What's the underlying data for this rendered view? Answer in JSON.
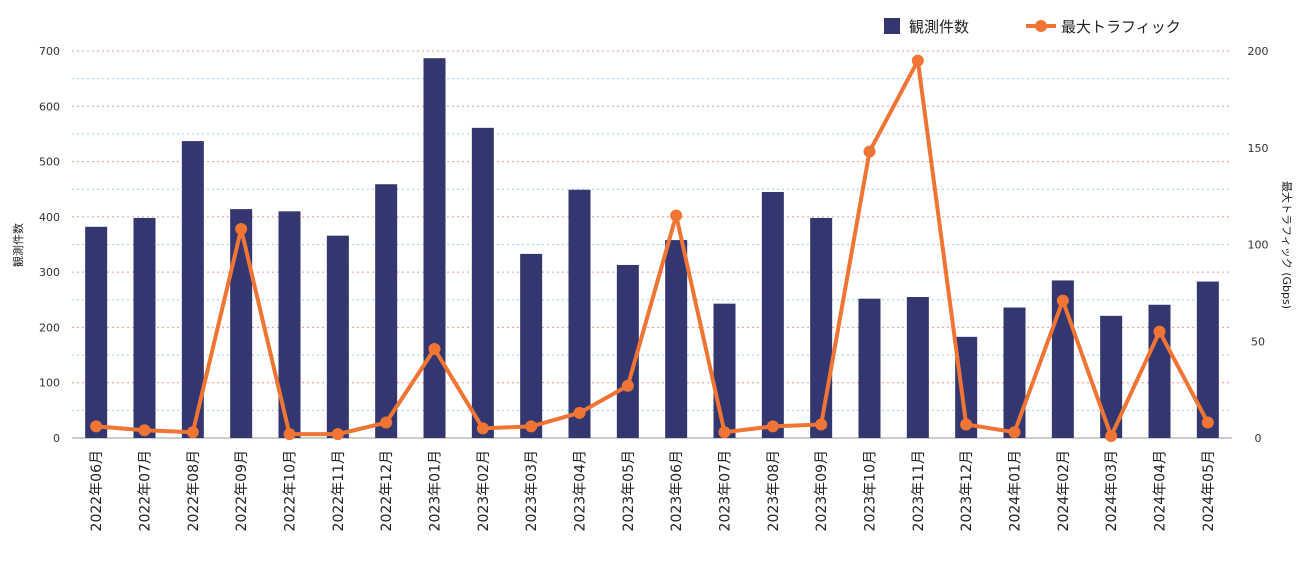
{
  "chart_data": {
    "type": "bar+line",
    "categories": [
      "2022年06月",
      "2022年07月",
      "2022年08月",
      "2022年09月",
      "2022年10月",
      "2022年11月",
      "2022年12月",
      "2023年01月",
      "2023年02月",
      "2023年03月",
      "2023年04月",
      "2023年05月",
      "2023年06月",
      "2023年07月",
      "2023年08月",
      "2023年09月",
      "2023年10月",
      "2023年11月",
      "2023年12月",
      "2024年01月",
      "2024年02月",
      "2024年03月",
      "2024年04月",
      "2024年05月"
    ],
    "series": [
      {
        "name": "観測件数",
        "type": "bar",
        "axis": "left",
        "color": "#33366f",
        "values": [
          382,
          398,
          537,
          414,
          410,
          366,
          459,
          687,
          561,
          333,
          449,
          313,
          358,
          243,
          445,
          398,
          252,
          255,
          183,
          236,
          285,
          221,
          241,
          283
        ]
      },
      {
        "name": "最大トラフィック",
        "type": "line",
        "axis": "right",
        "color": "#f07534",
        "values": [
          6,
          4,
          3,
          108,
          2,
          2,
          8,
          46,
          5,
          6,
          13,
          27,
          115,
          3,
          6,
          7,
          148,
          195,
          7,
          3,
          71,
          1,
          55,
          8
        ]
      }
    ],
    "yleft": {
      "label": "観測件数",
      "range": [
        0,
        700
      ],
      "ticks": [
        0,
        100,
        200,
        300,
        400,
        500,
        600,
        700
      ]
    },
    "yright": {
      "label": "最大トラフィック (Gbps)",
      "range": [
        0,
        200
      ],
      "ticks": [
        0,
        50,
        100,
        150,
        200
      ]
    },
    "legend": {
      "position": "top-right",
      "items": [
        "観測件数",
        "最大トラフィック"
      ]
    },
    "grid": true
  }
}
